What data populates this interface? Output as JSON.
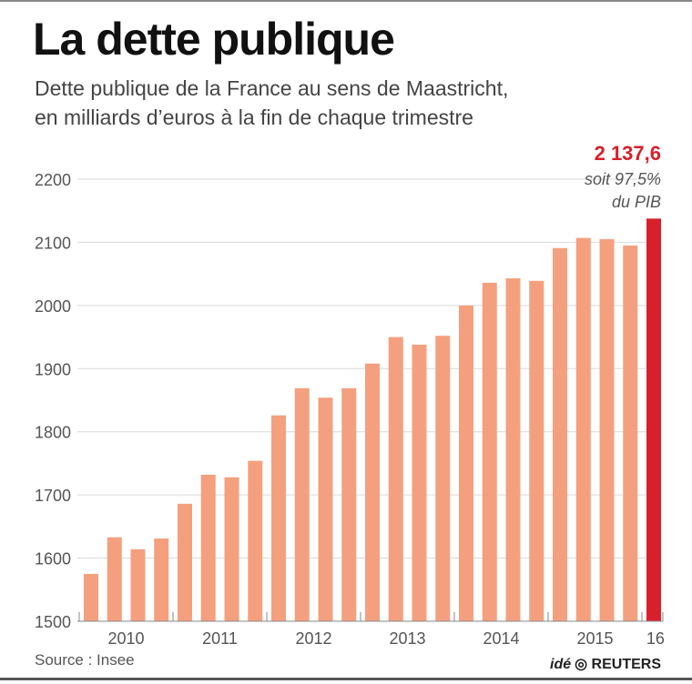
{
  "chart_data": {
    "type": "bar",
    "title": "La dette publique",
    "subtitle": [
      "Dette publique de la France au sens de Maastricht,",
      "en milliards d’euros à la fin de chaque trimestre"
    ],
    "year_labels": [
      "2010",
      "2011",
      "2012",
      "2013",
      "2014",
      "2015",
      "16"
    ],
    "categories": [
      "2010 T1",
      "2010 T2",
      "2010 T3",
      "2010 T4",
      "2011 T1",
      "2011 T2",
      "2011 T3",
      "2011 T4",
      "2012 T1",
      "2012 T2",
      "2012 T3",
      "2012 T4",
      "2013 T1",
      "2013 T2",
      "2013 T3",
      "2013 T4",
      "2014 T1",
      "2014 T2",
      "2014 T3",
      "2014 T4",
      "2015 T1",
      "2015 T2",
      "2015 T3",
      "2015 T4",
      "2016 T1"
    ],
    "values": [
      1575,
      1633,
      1614,
      1631,
      1686,
      1732,
      1728,
      1754,
      1826,
      1869,
      1854,
      1869,
      1908,
      1950,
      1938,
      1952,
      2000,
      2036,
      2043,
      2039,
      2091,
      2107,
      2105,
      2095,
      2137.6
    ],
    "ylim": [
      1500,
      2200
    ],
    "yticks": [
      1500,
      1600,
      1700,
      1800,
      1900,
      2000,
      2100,
      2200
    ],
    "grid": true,
    "annotation": {
      "value": "2 137,6",
      "line1": "soit 97,5%",
      "line2": "du PIB"
    },
    "colors": {
      "bar": "#f4a07f",
      "highlight": "#d7202b",
      "grid": "#d9d9d9"
    }
  },
  "footer": {
    "source": "Source : Insee",
    "logo_prefix": "idé",
    "logo": "REUTERS"
  }
}
